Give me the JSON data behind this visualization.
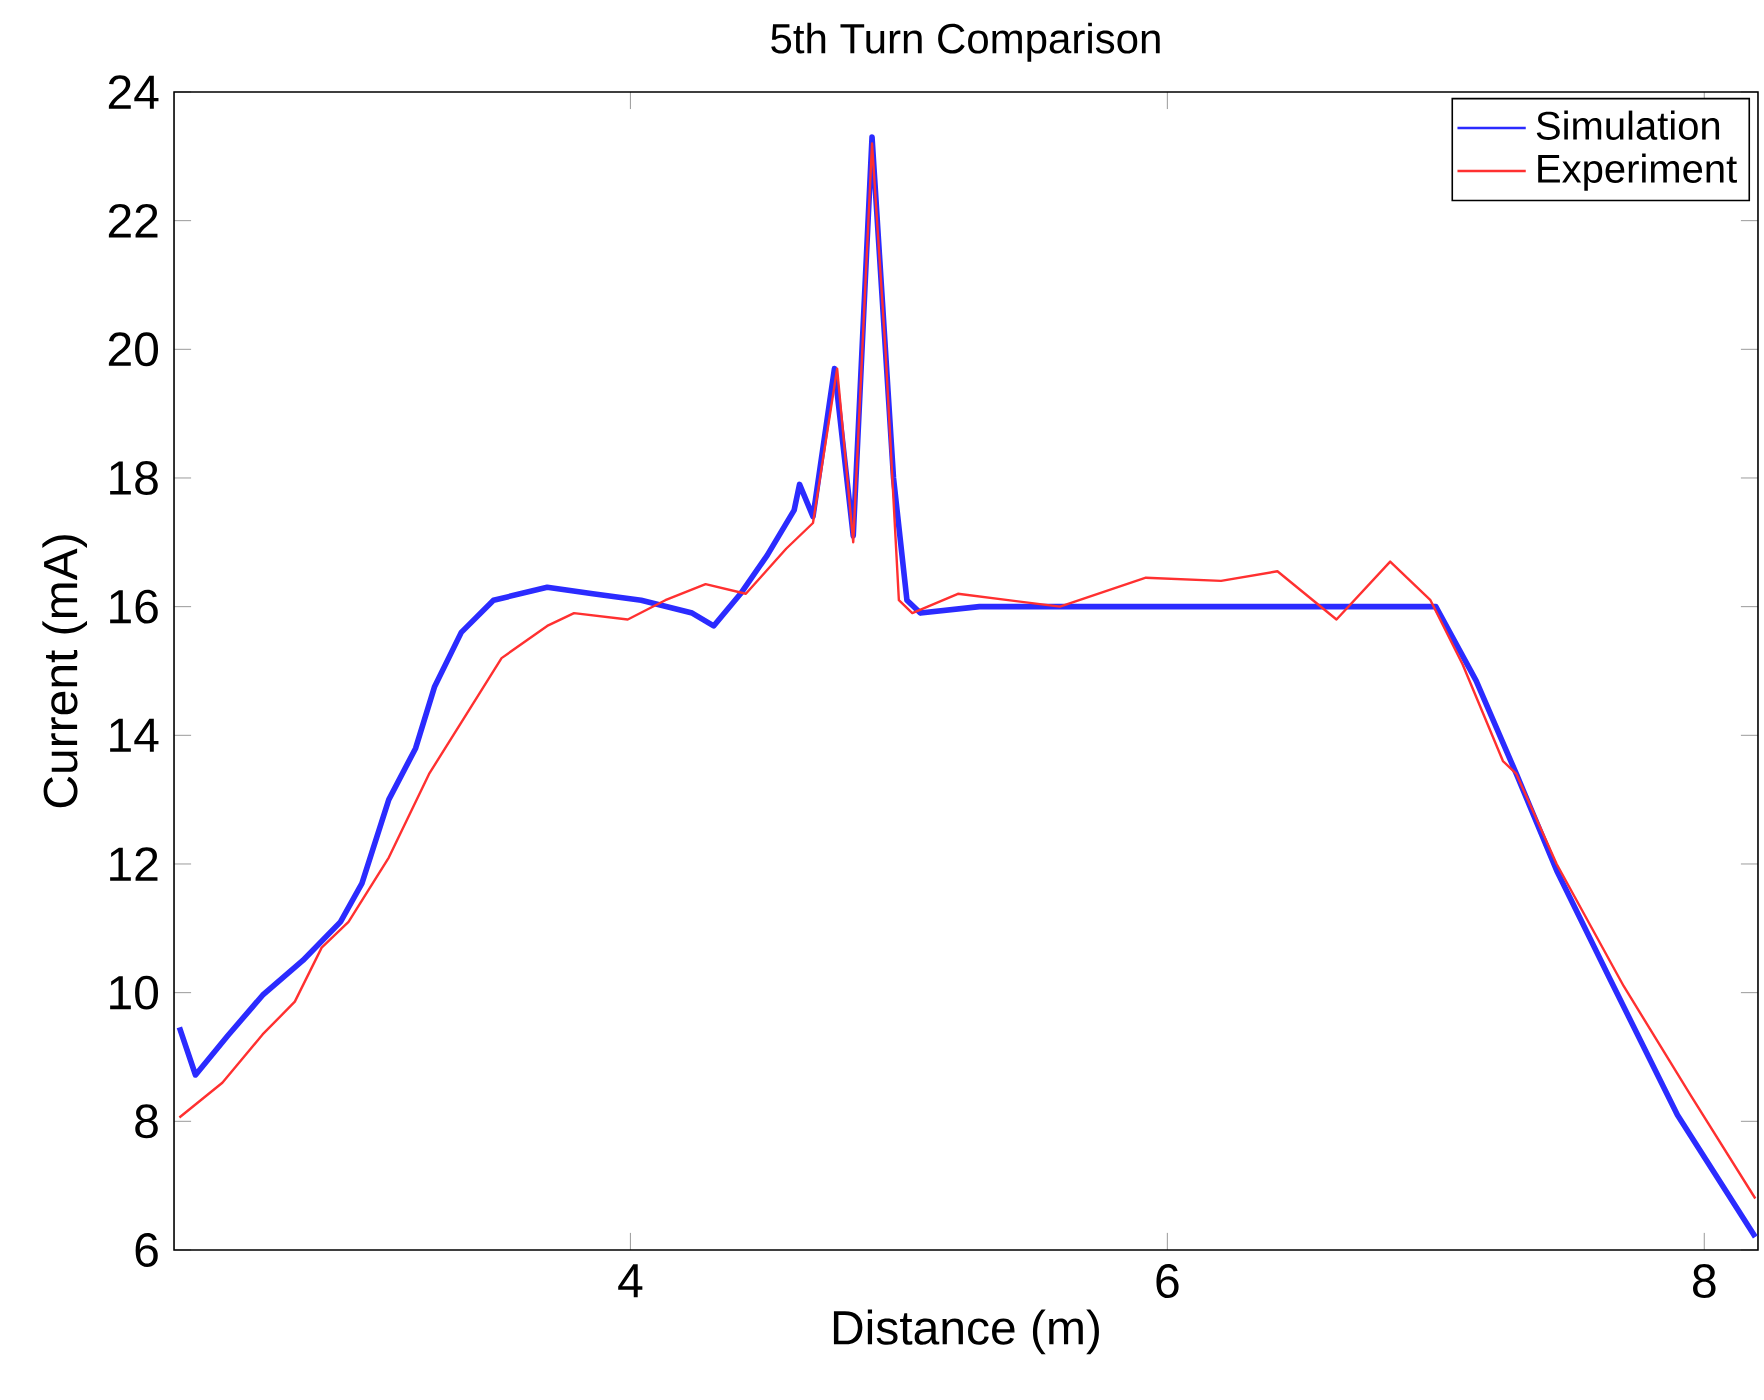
{
  "chart_data": {
    "type": "line",
    "title": "5th Turn Comparison",
    "xlabel": "Distance (m)",
    "ylabel": "Current (mA)",
    "xlim": [
      2.3,
      8.2
    ],
    "xticks": [
      4,
      6,
      8
    ],
    "ylim": [
      6,
      24
    ],
    "yticks": [
      6,
      8,
      10,
      12,
      14,
      16,
      18,
      20,
      22,
      24
    ],
    "grid": false,
    "legend": "top right",
    "series": [
      {
        "name": "Simulation",
        "color": "#2b2bff",
        "x": [
          2.32,
          2.38,
          2.5,
          2.63,
          2.78,
          2.92,
          3.0,
          3.1,
          3.2,
          3.27,
          3.37,
          3.49,
          3.69,
          3.86,
          4.04,
          4.23,
          4.31,
          4.41,
          4.51,
          4.61,
          4.63,
          4.68,
          4.76,
          4.83,
          4.9,
          4.98,
          5.03,
          5.08,
          5.3,
          5.6,
          5.9,
          6.2,
          6.5,
          6.8,
          7.0,
          7.15,
          7.3,
          7.45,
          7.65,
          7.9,
          8.19
        ],
        "values": [
          9.46,
          8.72,
          9.33,
          9.96,
          10.5,
          11.1,
          11.7,
          13.0,
          13.8,
          14.75,
          15.6,
          16.1,
          16.3,
          16.2,
          16.1,
          15.9,
          15.7,
          16.2,
          16.8,
          17.5,
          17.9,
          17.4,
          19.7,
          17.1,
          23.3,
          18.0,
          16.1,
          15.9,
          16.0,
          16.0,
          16.0,
          16.0,
          16.0,
          16.0,
          16.0,
          14.85,
          13.4,
          11.9,
          10.2,
          8.1,
          6.2
        ]
      },
      {
        "name": "Experiment",
        "color": "#ff3030",
        "x": [
          2.32,
          2.48,
          2.63,
          2.75,
          2.85,
          2.95,
          3.1,
          3.25,
          3.4,
          3.52,
          3.69,
          3.79,
          3.99,
          4.13,
          4.28,
          4.43,
          4.58,
          4.68,
          4.77,
          4.83,
          4.9,
          4.95,
          5.0,
          5.05,
          5.22,
          5.6,
          5.92,
          6.2,
          6.41,
          6.63,
          6.83,
          6.98,
          7.1,
          7.25,
          7.3,
          7.45,
          7.7,
          7.95,
          8.19
        ],
        "values": [
          8.06,
          8.6,
          9.35,
          9.86,
          10.7,
          11.1,
          12.1,
          13.4,
          14.4,
          15.2,
          15.7,
          15.9,
          15.8,
          16.1,
          16.35,
          16.2,
          16.9,
          17.3,
          19.7,
          17.0,
          23.2,
          20.0,
          16.1,
          15.9,
          16.2,
          16.0,
          16.45,
          16.4,
          16.55,
          15.8,
          16.7,
          16.1,
          15.1,
          13.6,
          13.4,
          12.0,
          10.1,
          8.4,
          6.8
        ]
      }
    ]
  }
}
